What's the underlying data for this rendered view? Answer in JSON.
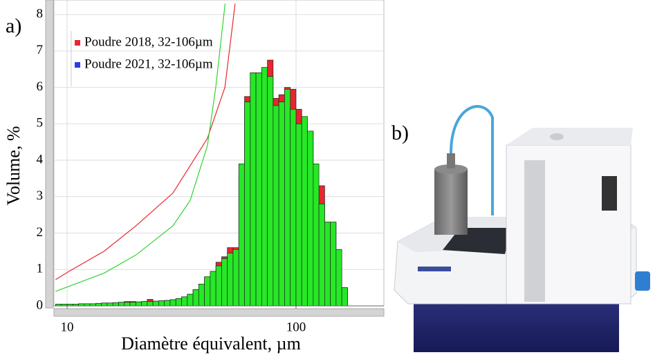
{
  "chart_data": {
    "type": "histogram",
    "panel_label": "a)",
    "photo_label": "b)",
    "xlabel": "Diamètre équivalent, µm",
    "ylabel": "Volume, %",
    "log_x": true,
    "xlim": [
      8.76,
      242
    ],
    "xticks": [
      10,
      100
    ],
    "ylim": [
      0,
      8.4
    ],
    "yticks": [
      0,
      1,
      2,
      3,
      4,
      5,
      6,
      7,
      8
    ],
    "grid": true,
    "legend": "upper left",
    "bins": [
      8.913,
      9.441,
      10,
      10.59,
      11.22,
      11.89,
      12.59,
      13.34,
      14.13,
      14.96,
      15.85,
      16.79,
      17.78,
      18.84,
      19.95,
      21.13,
      22.39,
      23.71,
      25.12,
      26.61,
      28.18,
      29.85,
      31.62,
      33.5,
      35.48,
      37.58,
      39.81,
      42.17,
      44.67,
      47.32,
      50.12,
      53.09,
      56.23,
      59.57,
      63.1,
      66.83,
      70.79,
      74.99,
      79.43,
      84.14,
      89.13,
      94.41,
      100,
      105.9,
      112.2,
      118.9,
      125.9,
      133.4,
      141.3,
      149.6,
      158.5,
      167.9
    ],
    "series": [
      {
        "name": "Poudre 2018, 32-106µm",
        "color": "#e8262e",
        "legend_color": "#e8262e",
        "values": [
          0.05,
          0.05,
          0.05,
          0.05,
          0.06,
          0.06,
          0.06,
          0.07,
          0.08,
          0.08,
          0.09,
          0.1,
          0.12,
          0.12,
          0.11,
          0.12,
          0.18,
          0.13,
          0.14,
          0.15,
          0.17,
          0.2,
          0.25,
          0.32,
          0.45,
          0.6,
          0.8,
          0.95,
          1.2,
          1.35,
          1.6,
          1.6,
          3.6,
          5.75,
          6.4,
          6.4,
          6.5,
          6.75,
          5.7,
          5.8,
          6.0,
          5.95,
          5.4,
          5.0,
          4.8,
          3.25,
          3.3,
          2.3,
          2.3,
          0.8,
          0.5
        ]
      },
      {
        "name": "Poudre 2021, 32-106µm",
        "color": "#26e826",
        "legend_color": "#2a3ee8",
        "values": [
          0.05,
          0.05,
          0.05,
          0.05,
          0.06,
          0.06,
          0.06,
          0.07,
          0.08,
          0.08,
          0.09,
          0.1,
          0.1,
          0.1,
          0.11,
          0.12,
          0.12,
          0.13,
          0.14,
          0.15,
          0.17,
          0.2,
          0.25,
          0.32,
          0.45,
          0.6,
          0.8,
          0.95,
          1.1,
          1.3,
          1.45,
          1.55,
          3.9,
          5.6,
          6.4,
          6.4,
          6.55,
          6.3,
          5.5,
          5.6,
          5.95,
          5.4,
          5.0,
          5.2,
          4.8,
          3.9,
          2.8,
          2.3,
          2.3,
          1.55,
          0.5
        ]
      }
    ],
    "cumulative": [
      {
        "color": "#e8262e",
        "x": [
          8.9,
          10.2,
          14.5,
          20,
          29,
          41,
          48.9,
          54.2
        ],
        "values": [
          0.72,
          0.95,
          1.5,
          2.2,
          3.1,
          4.6,
          6.0,
          8.3
        ]
      },
      {
        "color": "#2fd42f",
        "x": [
          8.9,
          14.5,
          20,
          29,
          34.5,
          41,
          44.6,
          49
        ],
        "values": [
          0.4,
          0.9,
          1.4,
          2.2,
          2.9,
          4.4,
          6.0,
          8.3
        ]
      }
    ]
  }
}
